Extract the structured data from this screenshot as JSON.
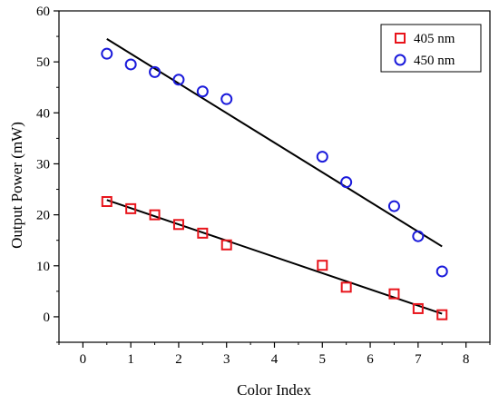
{
  "chart_data": {
    "type": "scatter",
    "xlabel": "Color Index",
    "ylabel": "Output Power (mW)",
    "xlim": [
      -0.5,
      8.5
    ],
    "ylim": [
      -5,
      60
    ],
    "xticks": [
      0,
      1,
      2,
      3,
      4,
      5,
      6,
      7,
      8
    ],
    "yticks": [
      0,
      10,
      20,
      30,
      40,
      50,
      60
    ],
    "grid": false,
    "legend_position": "top-right",
    "series": [
      {
        "name": "405 nm",
        "marker": "square",
        "color": "#e8141b",
        "x": [
          0.5,
          1.0,
          1.5,
          2.0,
          2.5,
          3.0,
          5.0,
          5.5,
          6.5,
          7.0,
          7.5
        ],
        "y": [
          22.6,
          21.2,
          20.0,
          18.1,
          16.4,
          14.1,
          10.1,
          5.8,
          4.5,
          1.6,
          0.4
        ]
      },
      {
        "name": "450 nm",
        "marker": "circle",
        "color": "#1a1adb",
        "x": [
          0.5,
          1.0,
          1.5,
          2.0,
          2.5,
          3.0,
          5.0,
          5.5,
          6.5,
          7.0,
          7.5
        ],
        "y": [
          51.6,
          49.5,
          48.0,
          46.5,
          44.2,
          42.7,
          31.4,
          26.4,
          21.7,
          15.8,
          8.9
        ]
      }
    ],
    "fit_lines": [
      {
        "x": [
          0.5,
          7.5
        ],
        "y": [
          22.9,
          0.6
        ],
        "color": "#000000"
      },
      {
        "x": [
          0.5,
          7.5
        ],
        "y": [
          54.5,
          13.8
        ],
        "color": "#000000"
      }
    ]
  }
}
